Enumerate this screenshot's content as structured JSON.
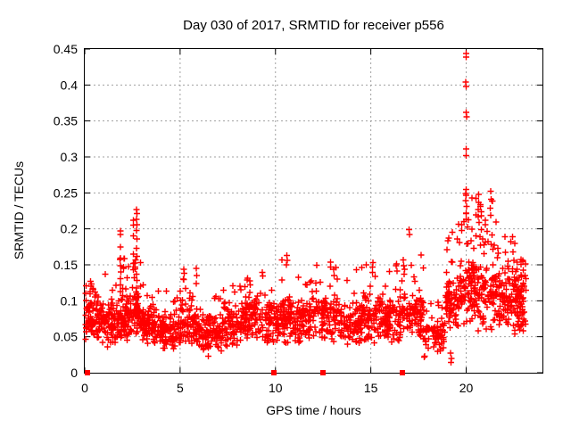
{
  "chart_data": {
    "type": "scatter",
    "title": "Day 030 of 2017, SRMTID for receiver p556",
    "xlabel": "GPS time / hours",
    "ylabel": "SRMTID / TECUs",
    "xlim": [
      0,
      24
    ],
    "ylim": [
      0,
      0.45
    ],
    "xticks": [
      0,
      5,
      10,
      15,
      20
    ],
    "xtick_labels": [
      "0",
      "5",
      "10",
      "15",
      "20"
    ],
    "yticks": [
      0,
      0.05,
      0.1,
      0.15,
      0.2,
      0.25,
      0.3,
      0.35,
      0.4,
      0.45
    ],
    "ytick_labels": [
      "0",
      "0.05",
      "0.1",
      "0.15",
      "0.2",
      "0.25",
      "0.3",
      "0.35",
      "0.4",
      "0.45"
    ],
    "grid": true,
    "grid_style": "dotted",
    "legend_position": "none",
    "axis_color": "#000000",
    "grid_color": "#a0a0a0",
    "background_color": "#ffffff",
    "series": [
      {
        "id": "srmtid-points",
        "marker": "plus",
        "color": "#ff0000",
        "cloud_seed": 20170030,
        "cloud_segments": [
          [
            0.05,
            0.7,
            70,
            0.035,
            0.115,
            0.13,
            0.05
          ],
          [
            0.7,
            1.6,
            90,
            0.035,
            0.105,
            0.14,
            0.05
          ],
          [
            1.6,
            2.2,
            65,
            0.04,
            0.115,
            0.16,
            0.1
          ],
          [
            2.2,
            2.5,
            35,
            0.04,
            0.11,
            0.15,
            0.08
          ],
          [
            2.5,
            2.95,
            55,
            0.045,
            0.125,
            0.16,
            0.12
          ],
          [
            2.95,
            4.0,
            95,
            0.035,
            0.095,
            0.125,
            0.06
          ],
          [
            4.0,
            5.0,
            90,
            0.03,
            0.09,
            0.12,
            0.05
          ],
          [
            5.0,
            6.0,
            90,
            0.03,
            0.1,
            0.135,
            0.08
          ],
          [
            6.0,
            7.2,
            95,
            0.022,
            0.085,
            0.11,
            0.05
          ],
          [
            7.2,
            8.4,
            95,
            0.035,
            0.105,
            0.135,
            0.07
          ],
          [
            8.4,
            9.4,
            85,
            0.04,
            0.11,
            0.142,
            0.07
          ],
          [
            9.4,
            10.2,
            75,
            0.035,
            0.105,
            0.145,
            0.07
          ],
          [
            10.2,
            11.0,
            78,
            0.04,
            0.115,
            0.16,
            0.08
          ],
          [
            11.0,
            12.2,
            95,
            0.035,
            0.11,
            0.15,
            0.07
          ],
          [
            12.2,
            13.3,
            92,
            0.04,
            0.12,
            0.165,
            0.08
          ],
          [
            13.3,
            14.5,
            95,
            0.035,
            0.105,
            0.145,
            0.07
          ],
          [
            14.5,
            15.6,
            90,
            0.04,
            0.115,
            0.155,
            0.08
          ],
          [
            15.6,
            16.6,
            85,
            0.04,
            0.115,
            0.155,
            0.08
          ],
          [
            16.6,
            17.8,
            92,
            0.04,
            0.12,
            0.165,
            0.08
          ],
          [
            17.8,
            18.9,
            65,
            0.02,
            0.09,
            0.12,
            0.05
          ],
          [
            18.9,
            19.6,
            70,
            0.05,
            0.15,
            0.2,
            0.12
          ],
          [
            19.6,
            20.6,
            105,
            0.06,
            0.17,
            0.25,
            0.18
          ],
          [
            20.6,
            21.6,
            105,
            0.055,
            0.165,
            0.24,
            0.15
          ],
          [
            21.6,
            22.6,
            100,
            0.05,
            0.155,
            0.19,
            0.1
          ],
          [
            22.6,
            23.15,
            75,
            0.05,
            0.15,
            0.165,
            0.08
          ]
        ],
        "outliers": [
          [
            0.3,
            0.127
          ],
          [
            0.32,
            0.12
          ],
          [
            0.28,
            0.113
          ],
          [
            1.87,
            0.197
          ],
          [
            1.88,
            0.192
          ],
          [
            1.86,
            0.175
          ],
          [
            1.88,
            0.159
          ],
          [
            1.87,
            0.149
          ],
          [
            1.89,
            0.14
          ],
          [
            1.86,
            0.131
          ],
          [
            1.88,
            0.122
          ],
          [
            1.87,
            0.113
          ],
          [
            2.55,
            0.212
          ],
          [
            2.56,
            0.205
          ],
          [
            2.54,
            0.19
          ],
          [
            2.55,
            0.165
          ],
          [
            2.56,
            0.152
          ],
          [
            2.54,
            0.143
          ],
          [
            2.72,
            0.227
          ],
          [
            2.73,
            0.221
          ],
          [
            2.71,
            0.213
          ],
          [
            2.73,
            0.206
          ],
          [
            2.72,
            0.198
          ],
          [
            2.74,
            0.186
          ],
          [
            2.71,
            0.173
          ],
          [
            2.73,
            0.162
          ],
          [
            2.72,
            0.137
          ],
          [
            2.74,
            0.128
          ],
          [
            2.72,
            0.118
          ],
          [
            5.2,
            0.144
          ],
          [
            5.22,
            0.138
          ],
          [
            5.18,
            0.13
          ],
          [
            5.85,
            0.145
          ],
          [
            5.86,
            0.135
          ],
          [
            5.84,
            0.124
          ],
          [
            10.6,
            0.163
          ],
          [
            10.62,
            0.156
          ],
          [
            10.58,
            0.15
          ],
          [
            12.9,
            0.154
          ],
          [
            12.88,
            0.147
          ],
          [
            15.1,
            0.153
          ],
          [
            15.08,
            0.147
          ],
          [
            16.7,
            0.157
          ],
          [
            16.72,
            0.149
          ],
          [
            17.0,
            0.199
          ],
          [
            17.02,
            0.192
          ],
          [
            19.2,
            0.014
          ],
          [
            19.22,
            0.02
          ],
          [
            19.18,
            0.027
          ],
          [
            19.99,
            0.444
          ],
          [
            20.01,
            0.439
          ],
          [
            19.98,
            0.404
          ],
          [
            20.0,
            0.398
          ],
          [
            20.0,
            0.362
          ],
          [
            20.02,
            0.356
          ],
          [
            19.99,
            0.311
          ],
          [
            20.0,
            0.302
          ],
          [
            20.0,
            0.255
          ],
          [
            20.01,
            0.247
          ],
          [
            19.98,
            0.239
          ],
          [
            20.02,
            0.231
          ],
          [
            20.0,
            0.222
          ],
          [
            20.01,
            0.213
          ],
          [
            20.65,
            0.248
          ],
          [
            20.66,
            0.237
          ],
          [
            20.63,
            0.227
          ],
          [
            20.64,
            0.217
          ],
          [
            21.28,
            0.252
          ],
          [
            21.3,
            0.241
          ],
          [
            21.26,
            0.229
          ],
          [
            21.29,
            0.219
          ]
        ]
      },
      {
        "id": "zero-flag-points",
        "marker": "square",
        "color": "#ff0000",
        "points": [
          [
            0.14,
            0
          ],
          [
            9.93,
            0
          ],
          [
            12.47,
            0
          ],
          [
            16.65,
            0
          ]
        ]
      }
    ]
  }
}
